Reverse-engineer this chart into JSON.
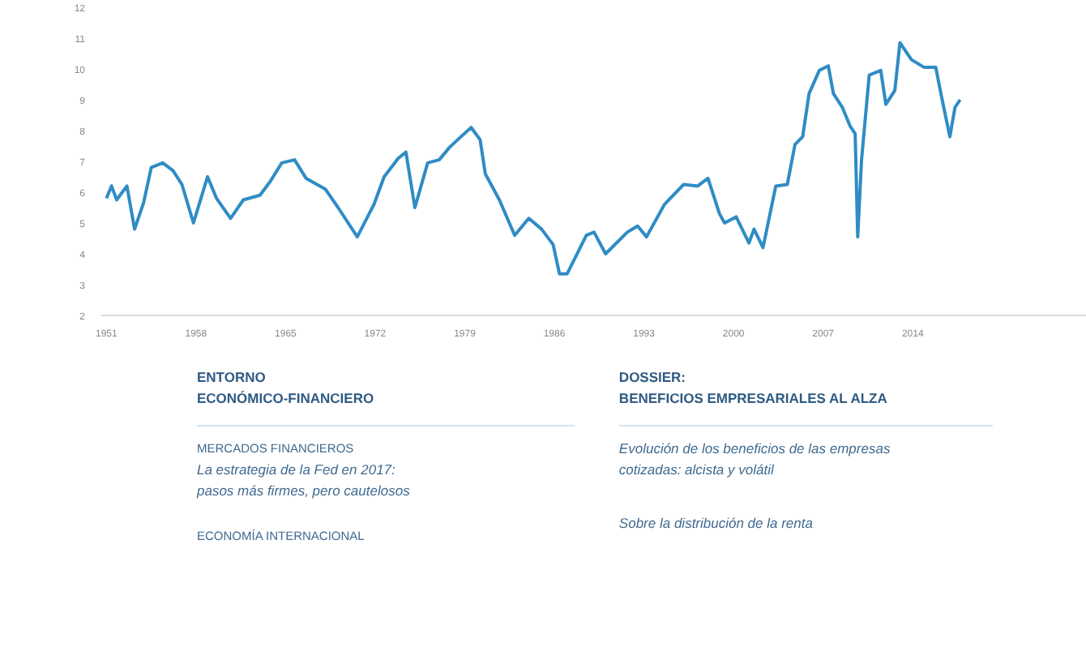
{
  "chart_data": {
    "type": "line",
    "x": [
      1951.0,
      1951.4,
      1951.8,
      1952.6,
      1953.2,
      1953.9,
      1954.5,
      1955.4,
      1956.2,
      1956.9,
      1957.8,
      1958.9,
      1959.6,
      1960.7,
      1961.7,
      1963.0,
      1963.8,
      1964.7,
      1965.7,
      1966.6,
      1968.1,
      1969.1,
      1970.6,
      1971.9,
      1972.7,
      1973.8,
      1974.4,
      1975.1,
      1976.1,
      1977.0,
      1977.8,
      1978.7,
      1979.5,
      1980.2,
      1980.6,
      1981.7,
      1982.9,
      1984.0,
      1985.0,
      1985.9,
      1986.4,
      1987.0,
      1988.5,
      1989.1,
      1990.0,
      1991.7,
      1992.5,
      1993.2,
      1994.6,
      1996.1,
      1997.2,
      1998.0,
      1998.9,
      1999.3,
      2000.2,
      2001.2,
      2001.6,
      2002.3,
      2003.3,
      2004.2,
      2004.8,
      2005.4,
      2005.9,
      2006.7,
      2007.4,
      2007.8,
      2008.5,
      2009.1,
      2009.5,
      2009.7,
      2010.0,
      2010.6,
      2011.5,
      2011.9,
      2012.6,
      2013.0,
      2013.9,
      2014.9,
      2015.8,
      2016.2,
      2016.9,
      2017.3,
      2017.7
    ],
    "series": [
      {
        "color": "#2f8cc4",
        "values": [
          5.8,
          6.2,
          5.75,
          6.2,
          4.8,
          5.65,
          6.8,
          6.95,
          6.7,
          6.25,
          5.0,
          6.5,
          5.8,
          5.15,
          5.75,
          5.9,
          6.35,
          6.95,
          7.05,
          6.45,
          6.1,
          5.5,
          4.55,
          5.6,
          6.5,
          7.1,
          7.3,
          5.5,
          6.95,
          7.05,
          7.45,
          7.8,
          8.1,
          7.7,
          6.6,
          5.75,
          4.6,
          5.15,
          4.8,
          4.3,
          3.35,
          3.35,
          4.6,
          4.7,
          4.0,
          4.7,
          4.9,
          4.55,
          5.6,
          6.25,
          6.2,
          6.45,
          5.3,
          5.0,
          5.2,
          4.35,
          4.8,
          4.2,
          6.2,
          6.25,
          7.55,
          7.8,
          9.2,
          9.95,
          10.1,
          9.2,
          8.75,
          8.15,
          7.9,
          4.55,
          7.05,
          9.8,
          9.95,
          8.85,
          9.3,
          10.85,
          10.3,
          10.05,
          10.05,
          9.2,
          7.8,
          8.75,
          9.0
        ]
      }
    ],
    "xlim": [
      1950.6,
      2027.6
    ],
    "ylim": [
      2,
      12
    ],
    "xticks": [
      1951,
      1958,
      1965,
      1972,
      1979,
      1986,
      1993,
      2000,
      2007,
      2014
    ],
    "yticks": [
      2,
      3,
      4,
      5,
      6,
      7,
      8,
      9,
      10,
      11,
      12
    ],
    "annotations": [
      "ENTORNO\nECONÓMICO-FINANCIERO",
      "MERCADOS FINANCIEROS",
      "La estrategia de la Fed en 2017:\npasos más firmes, pero cautelosos",
      "ECONOMÍA INTERNACIONAL",
      "DOSSIER:\nBENEFICIOS EMPRESARIALES AL ALZA",
      "Evolución de los beneficios de las empresas\ncotizadas: alcista y volátil",
      "Sobre la distribución de la renta"
    ]
  }
}
